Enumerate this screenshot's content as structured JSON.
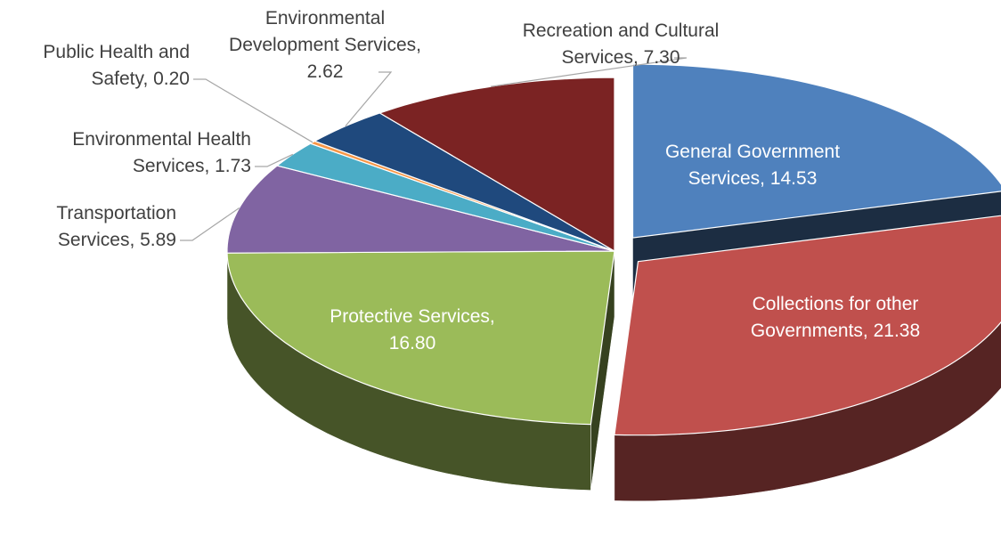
{
  "chart_data": {
    "type": "pie",
    "title": "",
    "unit": "",
    "slices": [
      {
        "name": "General Government Services",
        "value": 14.53,
        "label_lines": [
          "General Government",
          "Services,  14.53"
        ],
        "color": "#4f81bd",
        "label_placement": "inside",
        "exploded": true
      },
      {
        "name": "Collections for other Governments",
        "value": 21.38,
        "label_lines": [
          "Collections for other",
          "Governments,  21.38"
        ],
        "color": "#c0504d",
        "label_placement": "inside",
        "exploded": true
      },
      {
        "name": "Protective Services",
        "value": 16.8,
        "label_lines": [
          "Protective Services,",
          "16.80"
        ],
        "color": "#9bbb59",
        "label_placement": "inside",
        "exploded": false
      },
      {
        "name": "Transportation Services",
        "value": 5.89,
        "label_lines": [
          "Transportation",
          "Services,  5.89"
        ],
        "color": "#8064a2",
        "label_placement": "outside",
        "exploded": false
      },
      {
        "name": "Environmental Health Services",
        "value": 1.73,
        "label_lines": [
          "Environmental Health",
          "Services,  1.73"
        ],
        "color": "#4bacc6",
        "label_placement": "outside",
        "exploded": false
      },
      {
        "name": "Public Health and Safety",
        "value": 0.2,
        "label_lines": [
          "Public Health and",
          "Safety,  0.20"
        ],
        "color": "#f79646",
        "label_placement": "outside",
        "exploded": false
      },
      {
        "name": "Environmental Development Services",
        "value": 2.62,
        "label_lines": [
          "Environmental",
          "Development Services,",
          "2.62"
        ],
        "color": "#1f497d",
        "label_placement": "outside",
        "exploded": false
      },
      {
        "name": "Recreation and Cultural Services",
        "value": 7.3,
        "label_lines": [
          "Recreation and Cultural",
          "Services,  7.30"
        ],
        "color": "#7b2323",
        "label_placement": "outside",
        "exploded": false
      }
    ],
    "style": "3d-exploded-pie",
    "legend": "none"
  }
}
